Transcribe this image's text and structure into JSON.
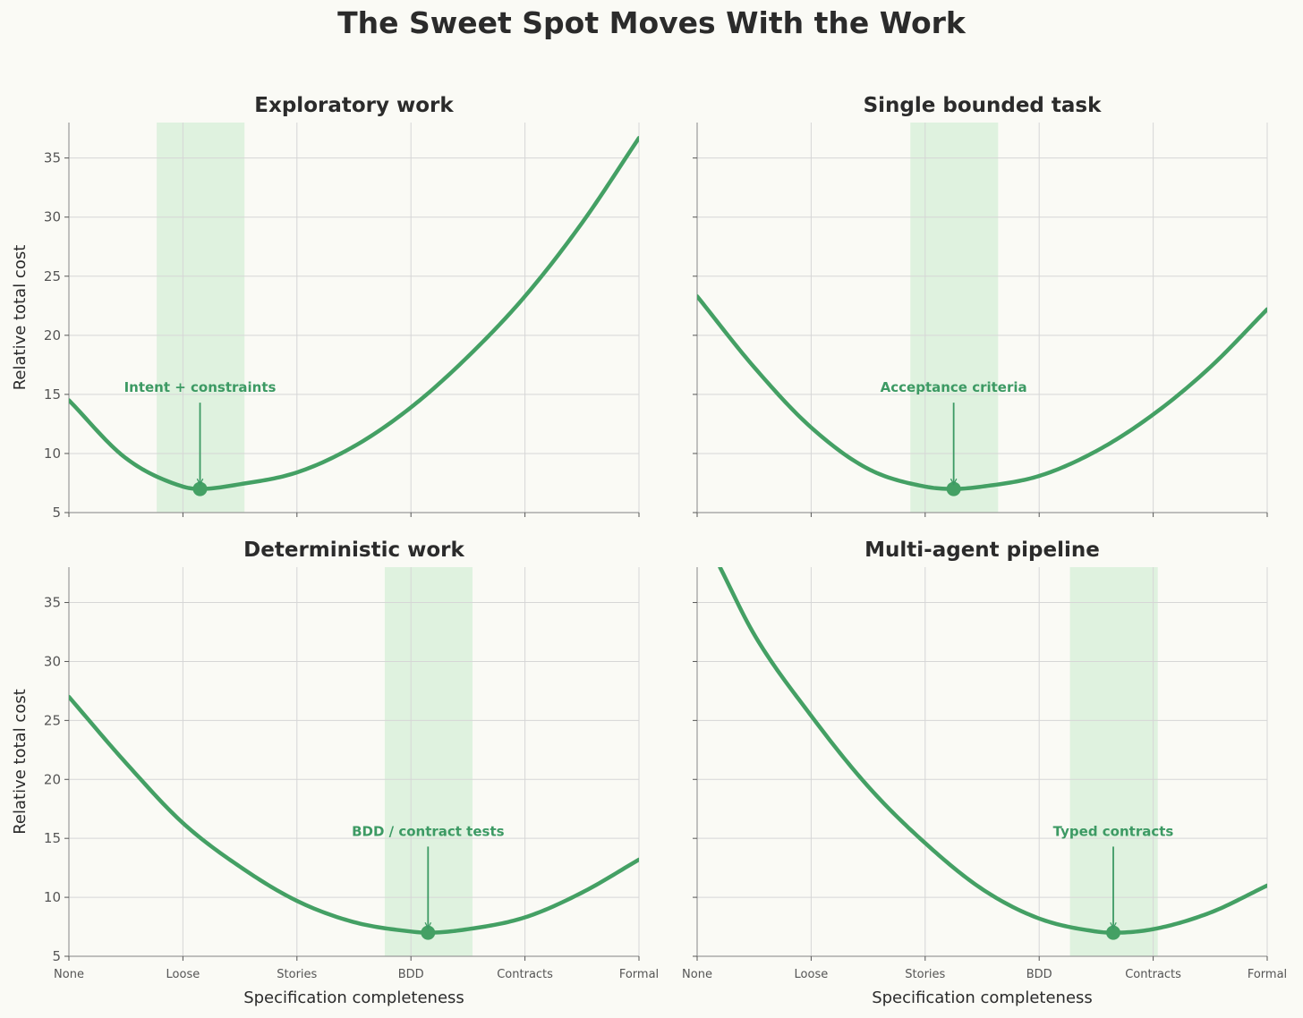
{
  "figure": {
    "title": "The Sweet Spot Moves With the Work"
  },
  "colors": {
    "background": "#fafaf5",
    "curve": "#44a064",
    "band": "#dff2df",
    "annotation": "#3d9a64",
    "grid": "#d6d6d6",
    "axis": "#9a9a9a",
    "text": "#2b2b2b"
  },
  "chart_data": [
    {
      "type": "line",
      "title": "Exploratory work",
      "xlabel": "",
      "ylabel": "Relative total cost",
      "x_categories": [
        "None",
        "Loose",
        "Stories",
        "BDD",
        "Contracts",
        "Formal"
      ],
      "x_tick_labels_visible": false,
      "xlim": [
        0,
        5
      ],
      "ylim": [
        5,
        38
      ],
      "yticks": [
        5,
        10,
        15,
        20,
        25,
        30,
        35
      ],
      "grid": true,
      "optimum": {
        "x": 1.15,
        "y": 7
      },
      "sweet_spot_band": [
        0.77,
        1.54
      ],
      "annotation": "Intent + constraints",
      "series": [
        {
          "x": [
            0,
            0.5,
            1.0,
            1.15,
            1.5,
            2.0,
            2.5,
            3.0,
            3.5,
            4.0,
            4.5,
            5.0
          ],
          "values": [
            14.5,
            9.6,
            7.2,
            7.0,
            7.4,
            8.4,
            10.6,
            13.9,
            18.2,
            23.3,
            29.5,
            36.7
          ]
        }
      ]
    },
    {
      "type": "line",
      "title": "Single bounded task",
      "xlabel": "",
      "ylabel": "",
      "x_categories": [
        "None",
        "Loose",
        "Stories",
        "BDD",
        "Contracts",
        "Formal"
      ],
      "x_tick_labels_visible": false,
      "xlim": [
        0,
        5
      ],
      "ylim": [
        5,
        38
      ],
      "yticks": [
        5,
        10,
        15,
        20,
        25,
        30,
        35
      ],
      "grid": true,
      "optimum": {
        "x": 2.25,
        "y": 7
      },
      "sweet_spot_band": [
        1.87,
        2.64
      ],
      "annotation": "Acceptance criteria",
      "series": [
        {
          "x": [
            0,
            0.5,
            1.0,
            1.5,
            2.0,
            2.25,
            2.5,
            3.0,
            3.5,
            4.0,
            4.5,
            5.0
          ],
          "values": [
            23.3,
            17.3,
            12.2,
            8.7,
            7.2,
            7.0,
            7.2,
            8.1,
            10.2,
            13.3,
            17.3,
            22.2
          ]
        }
      ]
    },
    {
      "type": "line",
      "title": "Deterministic work",
      "xlabel": "Specification completeness",
      "ylabel": "Relative total cost",
      "x_categories": [
        "None",
        "Loose",
        "Stories",
        "BDD",
        "Contracts",
        "Formal"
      ],
      "x_tick_labels_visible": true,
      "xlim": [
        0,
        5
      ],
      "ylim": [
        5,
        38
      ],
      "yticks": [
        5,
        10,
        15,
        20,
        25,
        30,
        35
      ],
      "grid": true,
      "optimum": {
        "x": 3.15,
        "y": 7
      },
      "sweet_spot_band": [
        2.77,
        3.54
      ],
      "annotation": "BDD / contract tests",
      "series": [
        {
          "x": [
            0,
            0.5,
            1.0,
            1.5,
            2.0,
            2.5,
            3.0,
            3.15,
            3.5,
            4.0,
            4.5,
            5.0
          ],
          "values": [
            27.0,
            21.4,
            16.3,
            12.6,
            9.7,
            7.9,
            7.1,
            7.0,
            7.3,
            8.3,
            10.4,
            13.2
          ]
        }
      ]
    },
    {
      "type": "line",
      "title": "Multi-agent pipeline",
      "xlabel": "Specification completeness",
      "ylabel": "",
      "x_categories": [
        "None",
        "Loose",
        "Stories",
        "BDD",
        "Contracts",
        "Formal"
      ],
      "x_tick_labels_visible": true,
      "xlim": [
        0,
        5
      ],
      "ylim": [
        5,
        38
      ],
      "yticks": [
        5,
        10,
        15,
        20,
        25,
        30,
        35
      ],
      "grid": true,
      "optimum": {
        "x": 3.65,
        "y": 7
      },
      "sweet_spot_band": [
        3.27,
        4.04
      ],
      "annotation": "Typed contracts",
      "series": [
        {
          "x": [
            0.2,
            0.5,
            1.0,
            1.5,
            2.0,
            2.5,
            3.0,
            3.5,
            3.65,
            4.0,
            4.5,
            5.0
          ],
          "values": [
            38.0,
            32.3,
            25.4,
            19.4,
            14.6,
            10.7,
            8.2,
            7.1,
            7.0,
            7.3,
            8.7,
            11.0
          ]
        }
      ]
    }
  ]
}
